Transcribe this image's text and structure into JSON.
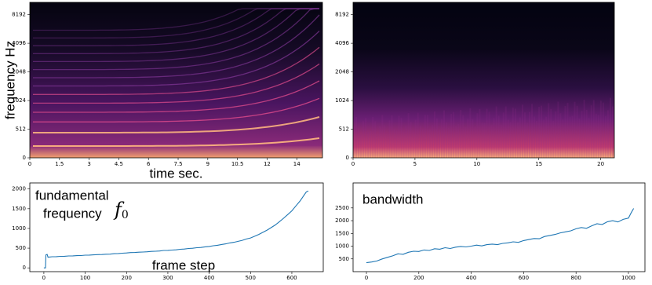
{
  "chart_data": [
    {
      "type": "spectrogram",
      "ylabel": "frequency Hz",
      "xlabel": "time sec.",
      "xlim": [
        0,
        14.8
      ],
      "xticks": [
        0,
        1.5,
        3,
        4.5,
        6,
        7.5,
        9,
        10.5,
        12,
        {
          "value": 13.5,
          "label": "14"
        }
      ],
      "ylim": [
        0,
        11025
      ],
      "yscale": "symlog",
      "linthresh": 512,
      "yticks": [
        0,
        512,
        1024,
        2048,
        4096,
        8192
      ]
    },
    {
      "type": "spectrogram",
      "xlim": [
        0,
        21.1
      ],
      "xticks": [
        0,
        5,
        10,
        15,
        20
      ],
      "ylim": [
        0,
        11025
      ],
      "yscale": "symlog",
      "linthresh": 512,
      "yticks": [
        0,
        512,
        1024,
        2048,
        4096,
        8192
      ]
    },
    {
      "type": "line",
      "annotations": [
        "fundamental",
        "frequency"
      ],
      "symbol": "f",
      "symbol_subscript": "0",
      "xlabel": "frame step",
      "color": "#1f77b4",
      "xlim": [
        -34,
        676
      ],
      "xticks": [
        0,
        100,
        200,
        300,
        400,
        500,
        600
      ],
      "ylim": [
        -96,
        2154
      ],
      "yticks": [
        0,
        500,
        1000,
        1500,
        2000
      ],
      "x": [
        0,
        4,
        5,
        8,
        10,
        20,
        30,
        40,
        50,
        60,
        70,
        80,
        90,
        100,
        110,
        120,
        130,
        140,
        150,
        160,
        170,
        180,
        190,
        200,
        210,
        220,
        230,
        240,
        250,
        260,
        270,
        280,
        290,
        300,
        310,
        320,
        330,
        340,
        350,
        360,
        370,
        380,
        390,
        400,
        410,
        420,
        430,
        440,
        450,
        460,
        470,
        480,
        490,
        500,
        510,
        520,
        530,
        540,
        550,
        560,
        570,
        580,
        590,
        600,
        610,
        620,
        630,
        635,
        640
      ],
      "values": [
        0,
        0,
        330,
        340,
        270,
        282,
        284,
        292,
        294,
        302,
        304,
        311,
        313,
        322,
        324,
        331,
        336,
        338,
        347,
        349,
        360,
        364,
        372,
        378,
        387,
        389,
        397,
        402,
        408,
        417,
        421,
        428,
        442,
        444,
        452,
        458,
        472,
        478,
        492,
        498,
        512,
        518,
        533,
        544,
        562,
        573,
        592,
        608,
        632,
        648,
        672,
        698,
        732,
        758,
        802,
        848,
        902,
        958,
        1022,
        1088,
        1172,
        1258,
        1352,
        1448,
        1572,
        1698,
        1852,
        1928,
        1950
      ]
    },
    {
      "type": "line",
      "annotations": [
        "bandwidth"
      ],
      "color": "#1f77b4",
      "xlim": [
        -51,
        1063
      ],
      "xticks": [
        0,
        200,
        400,
        600,
        800,
        1000
      ],
      "ylim": [
        0,
        3480
      ],
      "yticks": [
        500,
        1000,
        1500,
        2000,
        2500
      ],
      "x": [
        0,
        20,
        40,
        60,
        80,
        100,
        120,
        140,
        160,
        180,
        200,
        220,
        240,
        260,
        280,
        300,
        320,
        340,
        360,
        380,
        400,
        420,
        440,
        460,
        480,
        500,
        520,
        540,
        560,
        580,
        600,
        620,
        640,
        660,
        680,
        700,
        720,
        740,
        760,
        780,
        800,
        820,
        840,
        860,
        880,
        900,
        920,
        940,
        960,
        980,
        1000,
        1010,
        1020
      ],
      "values": [
        350,
        380,
        420,
        500,
        560,
        620,
        700,
        680,
        760,
        800,
        790,
        850,
        830,
        900,
        880,
        940,
        910,
        960,
        990,
        970,
        1000,
        1040,
        1010,
        1060,
        1080,
        1060,
        1110,
        1130,
        1170,
        1150,
        1220,
        1260,
        1300,
        1290,
        1380,
        1420,
        1460,
        1520,
        1560,
        1600,
        1680,
        1730,
        1700,
        1800,
        1880,
        1850,
        1960,
        2000,
        1950,
        2050,
        2100,
        2300,
        2480
      ]
    }
  ]
}
